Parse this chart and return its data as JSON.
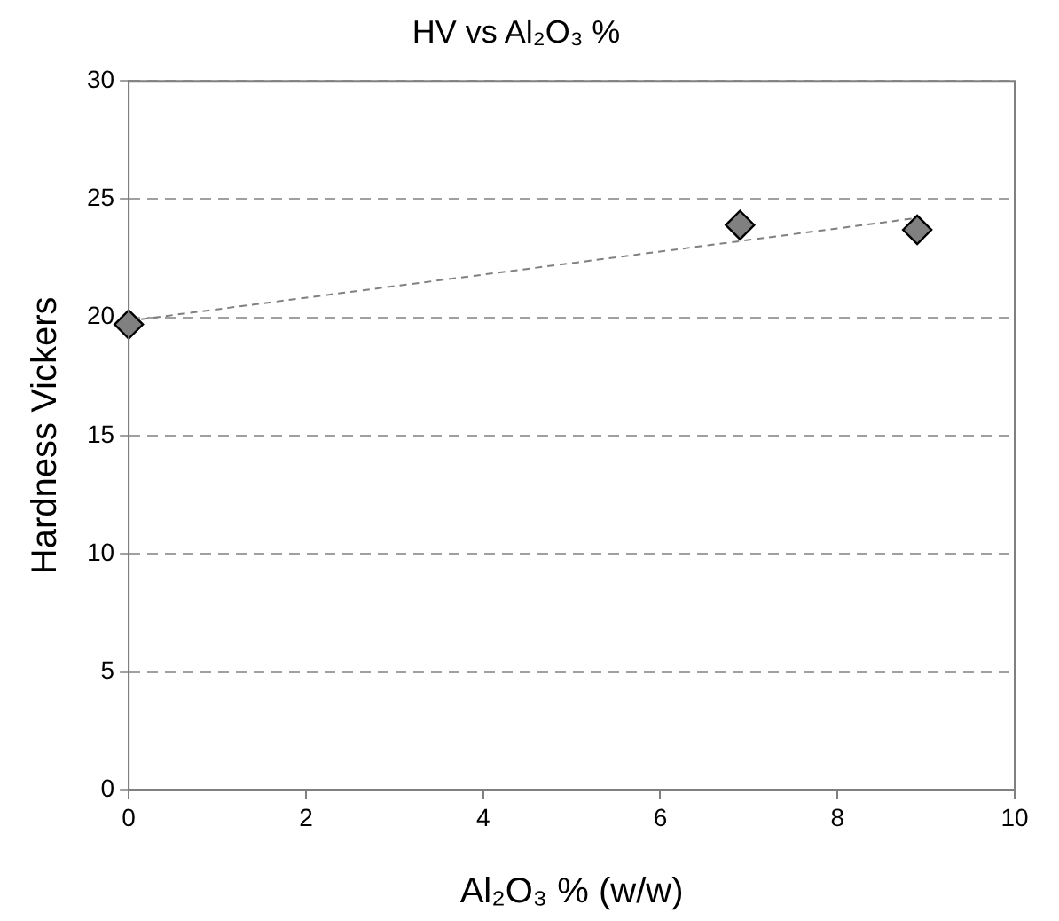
{
  "chart_data": {
    "type": "scatter",
    "title": "HV vs Al₂O₃ %",
    "xlabel": "Al₂O₃ % (w/w)",
    "ylabel": "Hardness Vickers",
    "series": [
      {
        "color": "#808080",
        "x": [
          0,
          6.9,
          8.9
        ],
        "values": [
          19.7,
          23.9,
          23.7
        ],
        "marker": "diamond"
      },
      {
        "type": "line",
        "color": "#808080",
        "x": [
          0,
          8.9
        ],
        "values": [
          19.85,
          24.2
        ],
        "marker": "none",
        "line_style": "dashed"
      }
    ],
    "xlim": [
      0,
      10
    ],
    "xticks": [
      0,
      2,
      4,
      6,
      8,
      10
    ],
    "ylim": [
      0,
      30
    ],
    "yticks": [
      0,
      5,
      10,
      15,
      20,
      25,
      30
    ],
    "grid": "y",
    "legend": false
  }
}
